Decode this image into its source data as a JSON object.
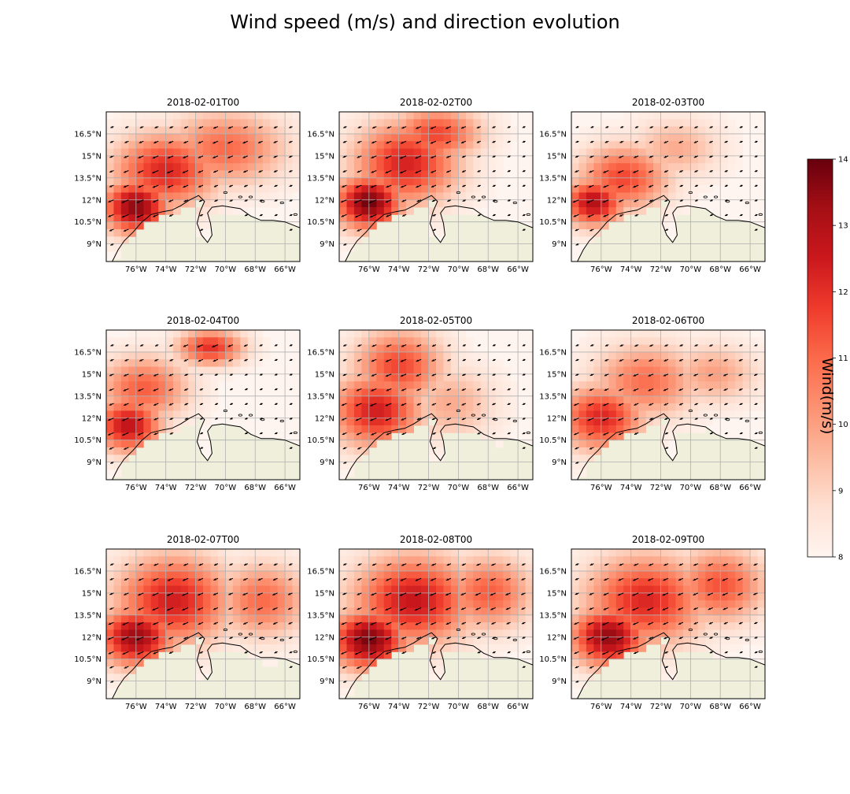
{
  "figure": {
    "title": "Wind speed (m/s) and direction evolution"
  },
  "colors": {
    "cmap_low": "#fff5f0",
    "cmap_high": "#67000d",
    "land": "#efefdb",
    "coast": "#000000",
    "grid": "#b0b0b0",
    "arrow": "#000000"
  },
  "chart_data": {
    "type": "heatmap",
    "subtype": "geographic wind speed maps with direction arrows",
    "colorbar": {
      "label": "Wind(m/s)",
      "min": 8,
      "max": 14,
      "ticks": [
        "8",
        "9",
        "10",
        "11",
        "12",
        "13",
        "14"
      ],
      "colormap": "Reds"
    },
    "extent": {
      "lon": [
        -78,
        -65
      ],
      "lat": [
        7.8,
        18.0
      ]
    },
    "x_ticks": [
      {
        "value": -76,
        "label": "76°W"
      },
      {
        "value": -74,
        "label": "74°W"
      },
      {
        "value": -72,
        "label": "72°W"
      },
      {
        "value": -70,
        "label": "70°W"
      },
      {
        "value": -68,
        "label": "68°W"
      },
      {
        "value": -66,
        "label": "66°W"
      }
    ],
    "y_ticks": [
      {
        "value": 16.5,
        "label": "16.5°N"
      },
      {
        "value": 15,
        "label": "15°N"
      },
      {
        "value": 13.5,
        "label": "13.5°N"
      },
      {
        "value": 12,
        "label": "12°N"
      },
      {
        "value": 10.5,
        "label": "10.5°N"
      },
      {
        "value": 9,
        "label": "9°N"
      }
    ],
    "grid": true,
    "wind_direction": "from the northeast (arrows pointing southwest)",
    "panels": [
      {
        "title": "2018-02-01T00",
        "centers": [
          {
            "lon": -76.0,
            "lat": 11.5,
            "speed": 13.6,
            "sx": 2.2,
            "sy": 1.8
          },
          {
            "lon": -74.0,
            "lat": 14.0,
            "speed": 12.2,
            "sx": 3.5,
            "sy": 2.5
          },
          {
            "lon": -70.0,
            "lat": 15.5,
            "speed": 11.0,
            "sx": 4.0,
            "sy": 2.5
          }
        ]
      },
      {
        "title": "2018-02-02T00",
        "centers": [
          {
            "lon": -76.0,
            "lat": 11.8,
            "speed": 13.9,
            "sx": 2.2,
            "sy": 1.8
          },
          {
            "lon": -73.5,
            "lat": 14.5,
            "speed": 12.3,
            "sx": 3.5,
            "sy": 2.8
          },
          {
            "lon": -71.5,
            "lat": 16.5,
            "speed": 11.6,
            "sx": 3.0,
            "sy": 1.8
          }
        ]
      },
      {
        "title": "2018-02-03T00",
        "centers": [
          {
            "lon": -76.5,
            "lat": 11.8,
            "speed": 13.0,
            "sx": 2.0,
            "sy": 1.6
          },
          {
            "lon": -74.5,
            "lat": 13.5,
            "speed": 11.6,
            "sx": 3.0,
            "sy": 2.2
          },
          {
            "lon": -71.0,
            "lat": 15.5,
            "speed": 9.8,
            "sx": 3.0,
            "sy": 2.0
          }
        ]
      },
      {
        "title": "2018-02-04T00",
        "centers": [
          {
            "lon": -76.5,
            "lat": 11.5,
            "speed": 12.8,
            "sx": 2.2,
            "sy": 1.8
          },
          {
            "lon": -75.5,
            "lat": 14.0,
            "speed": 11.2,
            "sx": 3.0,
            "sy": 2.2
          },
          {
            "lon": -71.0,
            "lat": 16.8,
            "speed": 12.0,
            "sx": 2.2,
            "sy": 1.2
          }
        ]
      },
      {
        "title": "2018-02-05T00",
        "centers": [
          {
            "lon": -75.5,
            "lat": 12.5,
            "speed": 12.4,
            "sx": 3.0,
            "sy": 2.5
          },
          {
            "lon": -74.0,
            "lat": 15.5,
            "speed": 11.6,
            "sx": 3.0,
            "sy": 2.5
          },
          {
            "lon": -70.5,
            "lat": 13.0,
            "speed": 9.8,
            "sx": 3.0,
            "sy": 2.5
          }
        ]
      },
      {
        "title": "2018-02-06T00",
        "centers": [
          {
            "lon": -76.0,
            "lat": 12.0,
            "speed": 12.2,
            "sx": 2.8,
            "sy": 2.2
          },
          {
            "lon": -73.0,
            "lat": 14.5,
            "speed": 10.9,
            "sx": 3.5,
            "sy": 2.5
          },
          {
            "lon": -68.5,
            "lat": 15.0,
            "speed": 10.0,
            "sx": 3.0,
            "sy": 2.0
          }
        ]
      },
      {
        "title": "2018-02-07T00",
        "centers": [
          {
            "lon": -76.0,
            "lat": 12.0,
            "speed": 13.4,
            "sx": 2.5,
            "sy": 2.0
          },
          {
            "lon": -73.5,
            "lat": 14.5,
            "speed": 12.4,
            "sx": 3.8,
            "sy": 3.0
          },
          {
            "lon": -67.5,
            "lat": 14.5,
            "speed": 11.0,
            "sx": 3.0,
            "sy": 2.5
          }
        ]
      },
      {
        "title": "2018-02-08T00",
        "centers": [
          {
            "lon": -76.0,
            "lat": 11.8,
            "speed": 13.8,
            "sx": 2.5,
            "sy": 2.0
          },
          {
            "lon": -73.0,
            "lat": 14.5,
            "speed": 12.6,
            "sx": 4.0,
            "sy": 3.0
          },
          {
            "lon": -68.0,
            "lat": 15.0,
            "speed": 11.2,
            "sx": 3.0,
            "sy": 2.5
          }
        ]
      },
      {
        "title": "2018-02-09T00",
        "centers": [
          {
            "lon": -75.5,
            "lat": 12.0,
            "speed": 13.5,
            "sx": 2.5,
            "sy": 2.0
          },
          {
            "lon": -73.0,
            "lat": 14.5,
            "speed": 12.2,
            "sx": 4.0,
            "sy": 3.0
          },
          {
            "lon": -68.0,
            "lat": 15.5,
            "speed": 11.4,
            "sx": 3.0,
            "sy": 2.5
          }
        ]
      }
    ]
  }
}
